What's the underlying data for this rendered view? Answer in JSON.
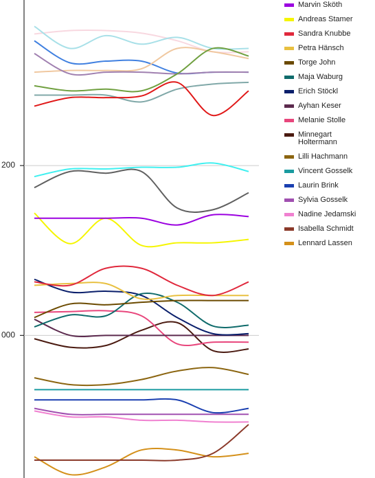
{
  "chart_data": {
    "type": "line",
    "x": [
      0,
      1,
      2,
      3,
      4,
      5,
      6
    ],
    "xlim": [
      0,
      6
    ],
    "ylim": [
      -168,
      395
    ],
    "yticks": [
      200,
      {
        "value": 0,
        "label": "000"
      }
    ],
    "grid": true,
    "legend": "right",
    "series": [
      {
        "name": "Marvin Sköth",
        "color": "#9b00e0",
        "values": [
          138,
          138,
          138,
          138,
          130,
          142,
          140
        ]
      },
      {
        "name": "Andreas Stamer",
        "color": "#f5f500",
        "values": [
          144,
          108,
          138,
          106,
          109,
          109,
          113
        ]
      },
      {
        "name": "Sandra Knubbe",
        "color": "#e0283c",
        "values": [
          63,
          59,
          79,
          79,
          59,
          47,
          63
        ]
      },
      {
        "name": "Petra Hänsch",
        "color": "#e8c040",
        "values": [
          59,
          61,
          61,
          43,
          47,
          47,
          47
        ]
      },
      {
        "name": "Torge John",
        "color": "#6b4a00",
        "values": [
          21,
          37,
          36,
          39,
          41,
          41,
          41
        ]
      },
      {
        "name": "Maja Waburg",
        "color": "#0f6b6b",
        "values": [
          10,
          24,
          23,
          49,
          39,
          11,
          12
        ]
      },
      {
        "name": "Erich Stöckl",
        "color": "#0a1f6b",
        "values": [
          66,
          51,
          52,
          47,
          21,
          2,
          2
        ]
      },
      {
        "name": "Ayhan Keser",
        "color": "#5c2a4e",
        "values": [
          19,
          0,
          0,
          0,
          0,
          0,
          0
        ]
      },
      {
        "name": "Melanie Stolle",
        "color": "#e8467c",
        "values": [
          27,
          28,
          29,
          23,
          -10,
          -8,
          -8
        ]
      },
      {
        "name": "Minnegart Holtermann",
        "color": "#4a1a10",
        "values": [
          -4,
          -14,
          -12,
          6,
          15,
          -18,
          -16
        ]
      },
      {
        "name": "Lilli Hachmann",
        "color": "#8b6510",
        "values": [
          -50,
          -58,
          -58,
          -52,
          -42,
          -38,
          -46
        ]
      },
      {
        "name": "Vincent Gosselk",
        "color": "#1a9ba0",
        "values": [
          -64,
          -64,
          -64,
          -64,
          -64,
          -64,
          -64
        ]
      },
      {
        "name": "Laurin Brink",
        "color": "#1a3fb0",
        "values": [
          -76,
          -76,
          -76,
          -76,
          -76,
          -91,
          -86
        ]
      },
      {
        "name": "Sylvia Gosselk",
        "color": "#a050b0",
        "values": [
          -86,
          -93,
          -93,
          -93,
          -93,
          -93,
          -93
        ]
      },
      {
        "name": "Nadine Jedamski",
        "color": "#f080d0",
        "values": [
          -89,
          -96,
          -96,
          -100,
          -100,
          -102,
          -102
        ]
      },
      {
        "name": "Isabella Schmidt",
        "color": "#8b3a2a",
        "values": [
          -147,
          -147,
          -147,
          -147,
          -147,
          -139,
          -105
        ]
      },
      {
        "name": "Lennard Lassen",
        "color": "#d4901a",
        "values": [
          -143,
          -164,
          -155,
          -135,
          -135,
          -143,
          -139
        ]
      },
      {
        "color": "#40f0f0",
        "values": [
          187,
          196,
          196,
          198,
          198,
          203,
          193
        ]
      },
      {
        "color": "#606060",
        "values": [
          174,
          193,
          191,
          193,
          150,
          148,
          168
        ]
      },
      {
        "color": "#e01818",
        "values": [
          270,
          280,
          280,
          282,
          298,
          259,
          288
        ]
      },
      {
        "color": "#80a8a8",
        "values": [
          283,
          283,
          283,
          275,
          290,
          296,
          298
        ]
      },
      {
        "color": "#70a040",
        "values": [
          294,
          288,
          290,
          288,
          308,
          338,
          329
        ]
      },
      {
        "color": "#a080b0",
        "values": [
          332,
          308,
          310,
          310,
          308,
          310,
          310
        ]
      },
      {
        "color": "#f0c8a0",
        "values": [
          310,
          312,
          312,
          314,
          338,
          334,
          326
        ]
      },
      {
        "color": "#4080e0",
        "values": [
          347,
          321,
          323,
          323,
          309,
          310,
          310
        ]
      },
      {
        "color": "#a8e0e8",
        "values": [
          364,
          338,
          353,
          343,
          351,
          338,
          338
        ]
      },
      {
        "color": "#f8d8e0",
        "values": [
          355,
          359,
          359,
          356,
          347,
          334,
          334
        ]
      }
    ]
  }
}
